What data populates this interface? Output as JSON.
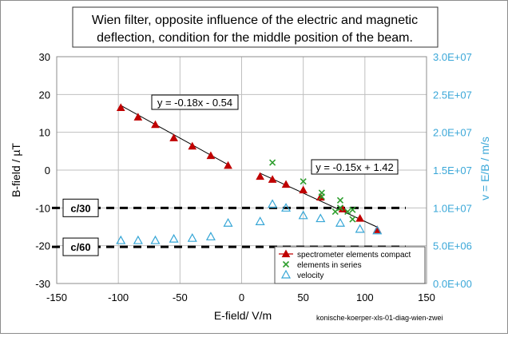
{
  "chart_data": {
    "type": "scatter",
    "title_lines": [
      "Wien filter, opposite influence of the electric and magnetic",
      "deflection, condition for the middle position of the beam."
    ],
    "xlabel": "E-field/  V/m",
    "ylabel": "B-field / µT",
    "y2label": "v = E/B  /  m/s",
    "xlim": [
      -150,
      150
    ],
    "ylim": [
      -30,
      30
    ],
    "y2lim": [
      0,
      30000000
    ],
    "xticks": [
      -150,
      -100,
      -50,
      0,
      50,
      100,
      150
    ],
    "yticks": [
      30,
      20,
      10,
      0,
      -10,
      -20,
      -30
    ],
    "y2ticks": [
      30000000,
      25000000,
      20000000,
      15000000,
      10000000,
      5000000,
      0
    ],
    "y2ticklabels": [
      "3.0E+07",
      "2.5E+07",
      "2.0E+07",
      "1.5E+07",
      "1.0E+07",
      "5.0E+06",
      "0.0E+00"
    ],
    "grid": {
      "horizontal": true,
      "vertical": true
    },
    "legend_position": "bottom-right",
    "series": [
      {
        "name": "spectrometer elements compact",
        "marker": "triangle-filled",
        "color": "#c00000",
        "axis": "left",
        "x": [
          -98,
          -84,
          -70,
          -55,
          -40,
          -25,
          -11,
          15,
          25,
          36,
          50,
          64,
          82,
          96,
          110
        ],
        "y": [
          16.5,
          14,
          12,
          8.5,
          6.3,
          3.8,
          1.2,
          -1.7,
          -2.5,
          -3.8,
          -5.3,
          -7.2,
          -10.3,
          -12.8,
          -15.8
        ]
      },
      {
        "name": "elements in series",
        "marker": "x",
        "color": "#2e9e2e",
        "axis": "left",
        "x": [
          25,
          50,
          65,
          65,
          76,
          80,
          80,
          86,
          90,
          90
        ],
        "y": [
          2,
          -3,
          -6,
          -7,
          -11,
          -8,
          -10,
          -11,
          -10.5,
          -13
        ]
      },
      {
        "name": "velocity",
        "marker": "triangle-open",
        "color": "#36a6d6",
        "axis": "right",
        "x": [
          -98,
          -84,
          -70,
          -55,
          -40,
          -25,
          -11,
          15,
          25,
          36,
          50,
          64,
          80,
          96,
          110
        ],
        "y": [
          5700000,
          5700000,
          5700000,
          5900000,
          6000000,
          6200000,
          8000000,
          8200000,
          10500000,
          10000000,
          9000000,
          8600000,
          8000000,
          7200000,
          7000000
        ]
      }
    ],
    "trendlines": [
      {
        "label": "y = -0.18x - 0.54",
        "slope": -0.18,
        "intercept": -0.54,
        "x_range": [
          -98,
          -11
        ]
      },
      {
        "label": "y = -0.15x + 1.42",
        "slope": -0.15,
        "intercept": 1.42,
        "x_range": [
          15,
          110
        ]
      }
    ],
    "reference_lines": [
      {
        "label": "c/30",
        "y": -10,
        "axis": "left"
      },
      {
        "label": "c/60",
        "y": -20.3,
        "axis": "left"
      }
    ],
    "footnote": "konische-koerper-xls-01-diag-wien-zwei"
  }
}
